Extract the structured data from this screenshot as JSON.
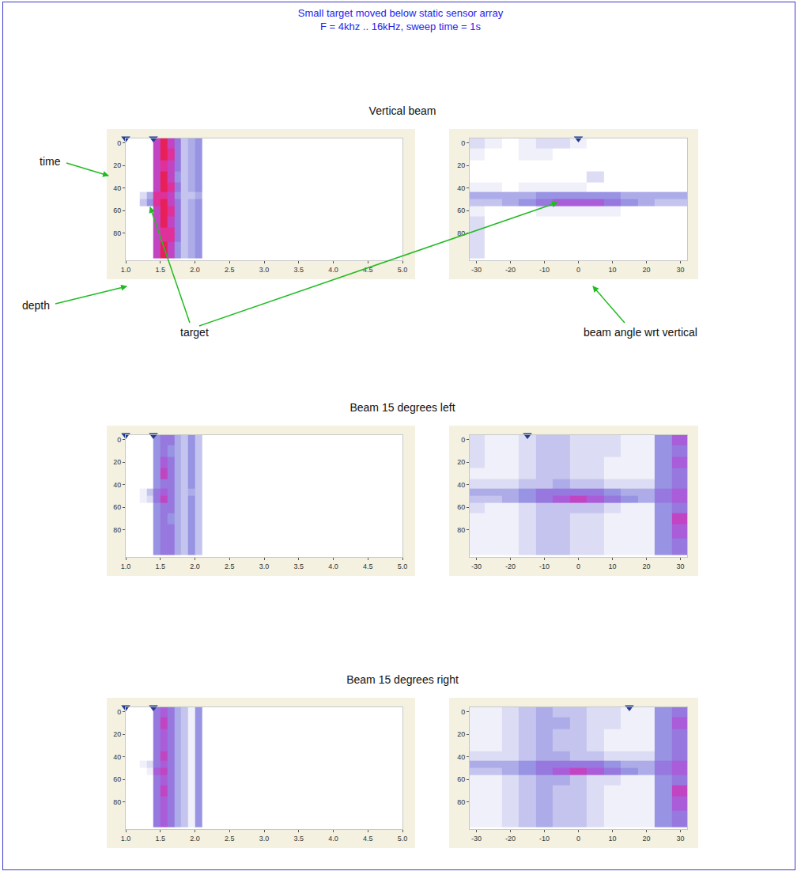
{
  "title": "Small target moved below static sensor array",
  "subtitle": "F = 4khz .. 16kHz, sweep time = 1s",
  "annotations": {
    "time": "time",
    "depth": "depth",
    "target": "target",
    "angle": "beam angle wrt vertical"
  },
  "chart_data": [
    {
      "type": "heatmap",
      "title": "Vertical beam",
      "x": [
        1.15,
        1.25,
        1.35,
        1.45,
        1.55,
        1.65,
        1.75,
        1.85,
        1.95,
        2.05
      ],
      "y": [
        0,
        10,
        20,
        30,
        40,
        47,
        52,
        60,
        70,
        80,
        95
      ],
      "z": [
        [
          0,
          0,
          0,
          8,
          10,
          8,
          6,
          3,
          4,
          5
        ],
        [
          0,
          0,
          0,
          8,
          10,
          9,
          6,
          3,
          4,
          5
        ],
        [
          0,
          0,
          0,
          8,
          9,
          8,
          6,
          3,
          4,
          5
        ],
        [
          0,
          0,
          0,
          8,
          10,
          8,
          5,
          3,
          4,
          5
        ],
        [
          0,
          0,
          0,
          8,
          10,
          9,
          6,
          3,
          4,
          5
        ],
        [
          0,
          2,
          4,
          9,
          9,
          8,
          5,
          3,
          3,
          4
        ],
        [
          0,
          3,
          5,
          9,
          10,
          8,
          6,
          3,
          4,
          5
        ],
        [
          0,
          0,
          0,
          8,
          10,
          9,
          6,
          3,
          4,
          5
        ],
        [
          0,
          0,
          0,
          8,
          10,
          8,
          6,
          3,
          4,
          5
        ],
        [
          0,
          0,
          0,
          8,
          9,
          9,
          6,
          3,
          4,
          5
        ],
        [
          0,
          0,
          0,
          8,
          10,
          8,
          5,
          3,
          4,
          5
        ]
      ],
      "zlim": [
        0,
        10
      ],
      "xlim": [
        1.0,
        5.0
      ],
      "xticks": [
        {
          "value": 1,
          "label": "1.0"
        },
        1.5,
        {
          "value": 2,
          "label": "2.0"
        },
        2.5,
        {
          "value": 3,
          "label": "3.0"
        },
        3.5,
        {
          "value": 4,
          "label": "4.0"
        },
        4.5,
        {
          "value": 5,
          "label": "5.0"
        }
      ],
      "ylim": [
        104,
        -4
      ],
      "yticks": [
        0,
        20,
        40,
        60,
        80
      ],
      "cursors": [
        1.0,
        1.4
      ],
      "marker": "triangle-down"
    },
    {
      "type": "heatmap",
      "x": [
        -30,
        -25,
        -20,
        -15,
        -10,
        -5,
        0,
        5,
        10,
        15,
        20,
        25,
        30
      ],
      "y": [
        0,
        10,
        20,
        30,
        40,
        47,
        52,
        60,
        70,
        80,
        95
      ],
      "z": [
        [
          2,
          1,
          0,
          1,
          2,
          2,
          1,
          0,
          0,
          0,
          0,
          0,
          0
        ],
        [
          1,
          0,
          0,
          1,
          1,
          0,
          0,
          0,
          0,
          0,
          0,
          0,
          0
        ],
        [
          0,
          0,
          0,
          0,
          0,
          0,
          0,
          0,
          0,
          0,
          0,
          0,
          0
        ],
        [
          0,
          0,
          0,
          0,
          0,
          0,
          0,
          2,
          0,
          0,
          0,
          0,
          0
        ],
        [
          1,
          1,
          0,
          1,
          1,
          1,
          1,
          0,
          0,
          0,
          0,
          0,
          0
        ],
        [
          4,
          4,
          4,
          4,
          5,
          5,
          5,
          5,
          5,
          4,
          4,
          4,
          4
        ],
        [
          3,
          3,
          4,
          5,
          6,
          7,
          7,
          7,
          6,
          5,
          4,
          3,
          3
        ],
        [
          1,
          0,
          0,
          0,
          1,
          1,
          1,
          1,
          1,
          0,
          0,
          0,
          0
        ],
        [
          2,
          0,
          0,
          0,
          0,
          0,
          0,
          0,
          0,
          0,
          0,
          0,
          0
        ],
        [
          2,
          0,
          0,
          0,
          0,
          0,
          0,
          0,
          0,
          0,
          0,
          0,
          0
        ],
        [
          2,
          0,
          0,
          0,
          0,
          0,
          0,
          0,
          0,
          0,
          0,
          0,
          0
        ]
      ],
      "zlim": [
        0,
        10
      ],
      "xlim": [
        -32,
        32
      ],
      "xticks": [
        -30,
        -20,
        -10,
        0,
        10,
        20,
        30
      ],
      "ylim": [
        104,
        -4
      ],
      "yticks": [
        0,
        20,
        40,
        60,
        80
      ],
      "cursors": [
        0
      ],
      "marker": "triangle-down"
    },
    {
      "type": "heatmap",
      "title": "Beam 15 degrees left",
      "x": [
        1.15,
        1.25,
        1.35,
        1.45,
        1.55,
        1.65,
        1.75,
        1.85,
        1.95,
        2.05
      ],
      "y": [
        0,
        10,
        20,
        30,
        40,
        47,
        52,
        60,
        70,
        80,
        95
      ],
      "z": [
        [
          0,
          0,
          0,
          5,
          6,
          6,
          4,
          3,
          5,
          3
        ],
        [
          0,
          0,
          0,
          5,
          6,
          5,
          4,
          3,
          5,
          3
        ],
        [
          0,
          0,
          0,
          5,
          7,
          6,
          4,
          3,
          5,
          3
        ],
        [
          0,
          0,
          0,
          5,
          8,
          6,
          4,
          3,
          5,
          3
        ],
        [
          0,
          0,
          0,
          5,
          6,
          6,
          4,
          3,
          5,
          3
        ],
        [
          0,
          1,
          3,
          6,
          7,
          6,
          4,
          3,
          4,
          3
        ],
        [
          0,
          1,
          2,
          6,
          8,
          6,
          4,
          3,
          5,
          3
        ],
        [
          0,
          0,
          0,
          5,
          6,
          6,
          4,
          3,
          5,
          3
        ],
        [
          0,
          0,
          0,
          5,
          6,
          5,
          4,
          3,
          5,
          3
        ],
        [
          0,
          0,
          0,
          5,
          6,
          6,
          4,
          3,
          5,
          3
        ],
        [
          0,
          0,
          0,
          5,
          6,
          6,
          4,
          3,
          5,
          3
        ]
      ],
      "zlim": [
        0,
        10
      ],
      "xlim": [
        1.0,
        5.0
      ],
      "xticks": [
        {
          "value": 1,
          "label": "1.0"
        },
        1.5,
        {
          "value": 2,
          "label": "2.0"
        },
        2.5,
        {
          "value": 3,
          "label": "3.0"
        },
        3.5,
        {
          "value": 4,
          "label": "4.0"
        },
        4.5,
        {
          "value": 5,
          "label": "5.0"
        }
      ],
      "ylim": [
        104,
        -4
      ],
      "yticks": [
        0,
        20,
        40,
        60,
        80
      ],
      "cursors": [
        1.0,
        1.4
      ],
      "marker": "triangle-down"
    },
    {
      "type": "heatmap",
      "x": [
        -30,
        -25,
        -20,
        -15,
        -10,
        -5,
        0,
        5,
        10,
        15,
        20,
        25,
        30
      ],
      "y": [
        0,
        10,
        20,
        30,
        40,
        47,
        52,
        60,
        70,
        80,
        95
      ],
      "z": [
        [
          2,
          1,
          1,
          2,
          3,
          3,
          2,
          2,
          2,
          1,
          1,
          5,
          7
        ],
        [
          2,
          1,
          1,
          2,
          3,
          3,
          2,
          2,
          2,
          1,
          1,
          5,
          6
        ],
        [
          2,
          1,
          1,
          2,
          3,
          3,
          2,
          2,
          1,
          1,
          1,
          5,
          7
        ],
        [
          1,
          1,
          1,
          2,
          3,
          3,
          2,
          2,
          1,
          1,
          1,
          5,
          6
        ],
        [
          2,
          2,
          2,
          3,
          3,
          4,
          3,
          3,
          2,
          2,
          2,
          5,
          6
        ],
        [
          4,
          4,
          4,
          5,
          6,
          6,
          6,
          6,
          5,
          4,
          4,
          6,
          7
        ],
        [
          3,
          3,
          4,
          5,
          6,
          7,
          8,
          7,
          6,
          5,
          4,
          6,
          7
        ],
        [
          2,
          1,
          1,
          2,
          3,
          3,
          3,
          3,
          2,
          1,
          1,
          5,
          6
        ],
        [
          1,
          1,
          1,
          2,
          3,
          3,
          2,
          2,
          1,
          1,
          1,
          5,
          8
        ],
        [
          1,
          1,
          1,
          2,
          3,
          3,
          2,
          2,
          1,
          1,
          1,
          5,
          7
        ],
        [
          1,
          1,
          1,
          2,
          3,
          3,
          2,
          2,
          1,
          1,
          1,
          5,
          6
        ]
      ],
      "zlim": [
        0,
        10
      ],
      "xlim": [
        -32,
        32
      ],
      "xticks": [
        -30,
        -20,
        -10,
        0,
        10,
        20,
        30
      ],
      "ylim": [
        104,
        -4
      ],
      "yticks": [
        0,
        20,
        40,
        60,
        80
      ],
      "cursors": [
        -15
      ],
      "marker": "triangle-down"
    },
    {
      "type": "heatmap",
      "title": "Beam 15 degrees right",
      "x": [
        1.15,
        1.25,
        1.35,
        1.45,
        1.55,
        1.65,
        1.75,
        1.85,
        1.95,
        2.05
      ],
      "y": [
        0,
        10,
        20,
        30,
        40,
        47,
        52,
        60,
        70,
        80,
        95
      ],
      "z": [
        [
          0,
          0,
          0,
          6,
          7,
          6,
          4,
          3,
          1,
          5
        ],
        [
          0,
          0,
          0,
          6,
          8,
          6,
          4,
          3,
          1,
          5
        ],
        [
          0,
          0,
          0,
          6,
          7,
          6,
          4,
          3,
          1,
          5
        ],
        [
          0,
          0,
          0,
          6,
          7,
          6,
          4,
          3,
          1,
          5
        ],
        [
          0,
          0,
          0,
          6,
          8,
          6,
          4,
          3,
          1,
          5
        ],
        [
          0,
          1,
          2,
          6,
          7,
          6,
          4,
          3,
          1,
          5
        ],
        [
          0,
          0,
          1,
          7,
          8,
          6,
          4,
          3,
          1,
          5
        ],
        [
          0,
          0,
          0,
          6,
          7,
          6,
          4,
          3,
          1,
          5
        ],
        [
          0,
          0,
          0,
          6,
          8,
          6,
          4,
          3,
          1,
          5
        ],
        [
          0,
          0,
          0,
          6,
          7,
          6,
          4,
          3,
          1,
          5
        ],
        [
          0,
          0,
          0,
          6,
          7,
          6,
          4,
          3,
          1,
          5
        ]
      ],
      "zlim": [
        0,
        10
      ],
      "xlim": [
        1.0,
        5.0
      ],
      "xticks": [
        {
          "value": 1,
          "label": "1.0"
        },
        1.5,
        {
          "value": 2,
          "label": "2.0"
        },
        2.5,
        {
          "value": 3,
          "label": "3.0"
        },
        3.5,
        {
          "value": 4,
          "label": "4.0"
        },
        4.5,
        {
          "value": 5,
          "label": "5.0"
        }
      ],
      "ylim": [
        104,
        -4
      ],
      "yticks": [
        0,
        20,
        40,
        60,
        80
      ],
      "cursors": [
        1.0,
        1.4
      ],
      "marker": "triangle-down"
    },
    {
      "type": "heatmap",
      "x": [
        -30,
        -25,
        -20,
        -15,
        -10,
        -5,
        0,
        5,
        10,
        15,
        20,
        25,
        30
      ],
      "y": [
        0,
        10,
        20,
        30,
        40,
        47,
        52,
        60,
        70,
        80,
        95
      ],
      "z": [
        [
          1,
          1,
          2,
          3,
          4,
          3,
          3,
          2,
          2,
          1,
          1,
          5,
          6
        ],
        [
          1,
          1,
          2,
          3,
          4,
          4,
          3,
          2,
          2,
          1,
          1,
          5,
          7
        ],
        [
          1,
          1,
          2,
          3,
          4,
          3,
          3,
          2,
          1,
          1,
          1,
          5,
          6
        ],
        [
          1,
          1,
          2,
          3,
          4,
          3,
          3,
          2,
          1,
          1,
          1,
          5,
          6
        ],
        [
          2,
          2,
          2,
          3,
          4,
          4,
          3,
          3,
          2,
          2,
          2,
          5,
          6
        ],
        [
          4,
          4,
          4,
          5,
          6,
          6,
          6,
          6,
          5,
          4,
          4,
          6,
          7
        ],
        [
          3,
          3,
          4,
          5,
          6,
          7,
          8,
          7,
          6,
          5,
          4,
          6,
          7
        ],
        [
          1,
          1,
          2,
          3,
          4,
          4,
          3,
          2,
          2,
          1,
          1,
          5,
          6
        ],
        [
          1,
          1,
          2,
          3,
          4,
          3,
          3,
          2,
          1,
          1,
          1,
          5,
          8
        ],
        [
          1,
          1,
          2,
          3,
          4,
          3,
          3,
          2,
          1,
          1,
          1,
          5,
          7
        ],
        [
          1,
          1,
          2,
          3,
          4,
          3,
          3,
          2,
          1,
          1,
          1,
          5,
          6
        ]
      ],
      "zlim": [
        0,
        10
      ],
      "xlim": [
        -32,
        32
      ],
      "xticks": [
        -30,
        -20,
        -10,
        0,
        10,
        20,
        30
      ],
      "ylim": [
        104,
        -4
      ],
      "yticks": [
        0,
        20,
        40,
        60,
        80
      ],
      "cursors": [
        15
      ],
      "marker": "triangle-down"
    }
  ]
}
